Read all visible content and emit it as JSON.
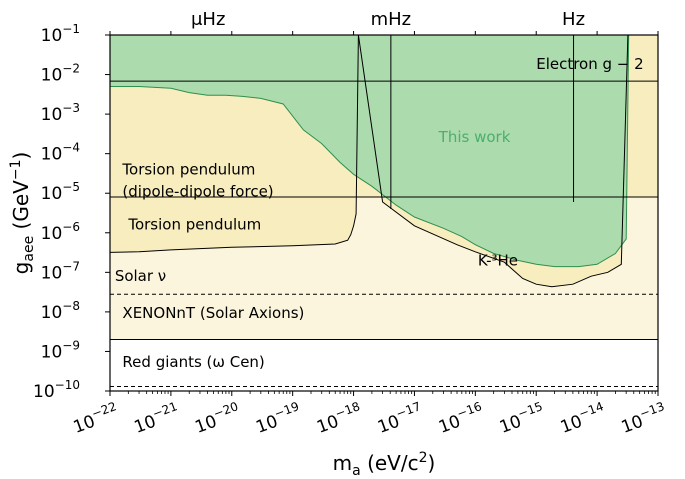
{
  "chart_data": {
    "type": "area",
    "xlabel": {
      "base": "m",
      "sub": "a",
      "rest": " (eV/c",
      "sup": "2",
      "close": ")"
    },
    "ylabel": {
      "base": "g",
      "sub": "aee",
      "rest": " (GeV",
      "sup": "−1",
      "close": ")"
    },
    "x_scale": "log",
    "y_scale": "log",
    "xlim": [
      1e-22,
      1e-13
    ],
    "ylim": [
      1e-10,
      0.1
    ],
    "x_ticks": [
      {
        "value": 1e-22,
        "base": "10",
        "exp": "−22"
      },
      {
        "value": 1e-21,
        "base": "10",
        "exp": "−21"
      },
      {
        "value": 1e-20,
        "base": "10",
        "exp": "−20"
      },
      {
        "value": 1e-19,
        "base": "10",
        "exp": "−19"
      },
      {
        "value": 1e-18,
        "base": "10",
        "exp": "−18"
      },
      {
        "value": 1e-17,
        "base": "10",
        "exp": "−17"
      },
      {
        "value": 1e-16,
        "base": "10",
        "exp": "−16"
      },
      {
        "value": 1e-15,
        "base": "10",
        "exp": "−15"
      },
      {
        "value": 1e-14,
        "base": "10",
        "exp": "−14"
      },
      {
        "value": 1e-13,
        "base": "10",
        "exp": "−13"
      }
    ],
    "y_ticks": [
      {
        "value": 1e-10,
        "base": "10",
        "exp": "−10"
      },
      {
        "value": 1e-09,
        "base": "10",
        "exp": "−9"
      },
      {
        "value": 1e-08,
        "base": "10",
        "exp": "−8"
      },
      {
        "value": 1e-07,
        "base": "10",
        "exp": "−7"
      },
      {
        "value": 1e-06,
        "base": "10",
        "exp": "−6"
      },
      {
        "value": 1e-05,
        "base": "10",
        "exp": "−5"
      },
      {
        "value": 0.0001,
        "base": "10",
        "exp": "−4"
      },
      {
        "value": 0.001,
        "base": "10",
        "exp": "−3"
      },
      {
        "value": 0.01,
        "base": "10",
        "exp": "−2"
      },
      {
        "value": 0.1,
        "base": "10",
        "exp": "−1"
      }
    ],
    "top_axis_labels": [
      {
        "text": "μHz",
        "x_value": 4.1e-21
      },
      {
        "text": "mHz",
        "x_value": 4.1e-18
      },
      {
        "text": "Hz",
        "x_value": 4.1e-15
      }
    ],
    "frequency_dividers": [
      4.1e-21,
      4.1e-18,
      4.1e-15
    ],
    "series": [
      {
        "name": "Electron g − 2",
        "kind": "horizontal_band",
        "lower": 0.0068,
        "color": "#f8edbe",
        "label_pos": [
          1e-15,
          0.014
        ]
      },
      {
        "name": "Torsion pendulum\n(dipole-dipole force)",
        "kind": "horizontal_band",
        "lower": 8e-06,
        "color": "#f8edbe",
        "label_pos": [
          1.6e-22,
          3e-05
        ]
      },
      {
        "name": "Torsion pendulum",
        "kind": "curve",
        "color": "#f8edbe",
        "label_pos": [
          2e-22,
          1.2e-06
        ],
        "x": [
          1e-22,
          3e-22,
          1e-21,
          1e-20,
          1e-19,
          5e-19,
          8e-19,
          9e-19,
          1e-18,
          1.1e-18,
          1.2e-18
        ],
        "y": [
          3.2e-07,
          3.3e-07,
          3.7e-07,
          4.3e-07,
          4.7e-07,
          5.2e-07,
          6.5e-07,
          9e-07,
          1.5e-06,
          3e-06,
          0.1
        ]
      },
      {
        "name": "K-³He",
        "kind": "curve",
        "color": "#f8edbe",
        "label_pos": [
          1.1e-16,
          1.5e-07
        ],
        "x": [
          1.2e-18,
          3e-18,
          1e-17,
          5e-17,
          1e-16,
          3e-16,
          6e-16,
          1e-15,
          1.8e-15,
          4e-15,
          8e-15,
          1.5e-14,
          2.5e-14,
          3.2e-14
        ],
        "y": [
          0.1,
          6e-06,
          1.5e-06,
          5e-07,
          3.3e-07,
          1.8e-07,
          7e-08,
          5e-08,
          4.3e-08,
          5e-08,
          8e-08,
          1e-07,
          1.6e-07,
          0.1
        ]
      },
      {
        "name": "Solar ν",
        "kind": "horizontal_band",
        "lower": 2.8e-08,
        "color": "#fcf5dd",
        "label_pos": [
          1.2e-22,
          6e-08
        ]
      },
      {
        "name": "XENONnT (Solar Axions)",
        "kind": "horizontal_band",
        "lower": 2e-09,
        "color": "#fcf5dd",
        "label_pos": [
          1.6e-22,
          7e-09
        ]
      },
      {
        "name": "Red giants (ω Cen)",
        "kind": "horizontal_band",
        "lower": 1.3e-10,
        "color": "#ffffff",
        "label_pos": [
          1.6e-22,
          4e-10
        ]
      },
      {
        "name": "This work",
        "kind": "exclusion",
        "color": "#9fd7aa",
        "label_color": "#4caf6e",
        "label_pos": [
          2.5e-17,
          0.0002
        ],
        "x": [
          1e-22,
          3e-22,
          1e-21,
          2e-21,
          4e-21,
          8e-21,
          1.5e-20,
          3e-20,
          7e-20,
          1.5e-19,
          3e-19,
          6e-19,
          1e-18,
          2e-18,
          5e-18,
          1e-17,
          3e-17,
          6e-17,
          1e-16,
          2e-16,
          5e-16,
          1e-15,
          2e-15,
          5e-15,
          1e-14,
          2e-14,
          3e-14,
          3.3e-14
        ],
        "y": [
          0.005,
          0.005,
          0.0045,
          0.0035,
          0.003,
          0.003,
          0.0028,
          0.0025,
          0.0018,
          0.0004,
          0.00018,
          6e-05,
          3e-05,
          1.5e-05,
          5e-06,
          2.5e-06,
          1.3e-06,
          8e-07,
          5e-07,
          3e-07,
          2e-07,
          1.6e-07,
          1.4e-07,
          1.4e-07,
          1.6e-07,
          3e-07,
          7e-07,
          0.1
        ]
      }
    ]
  }
}
